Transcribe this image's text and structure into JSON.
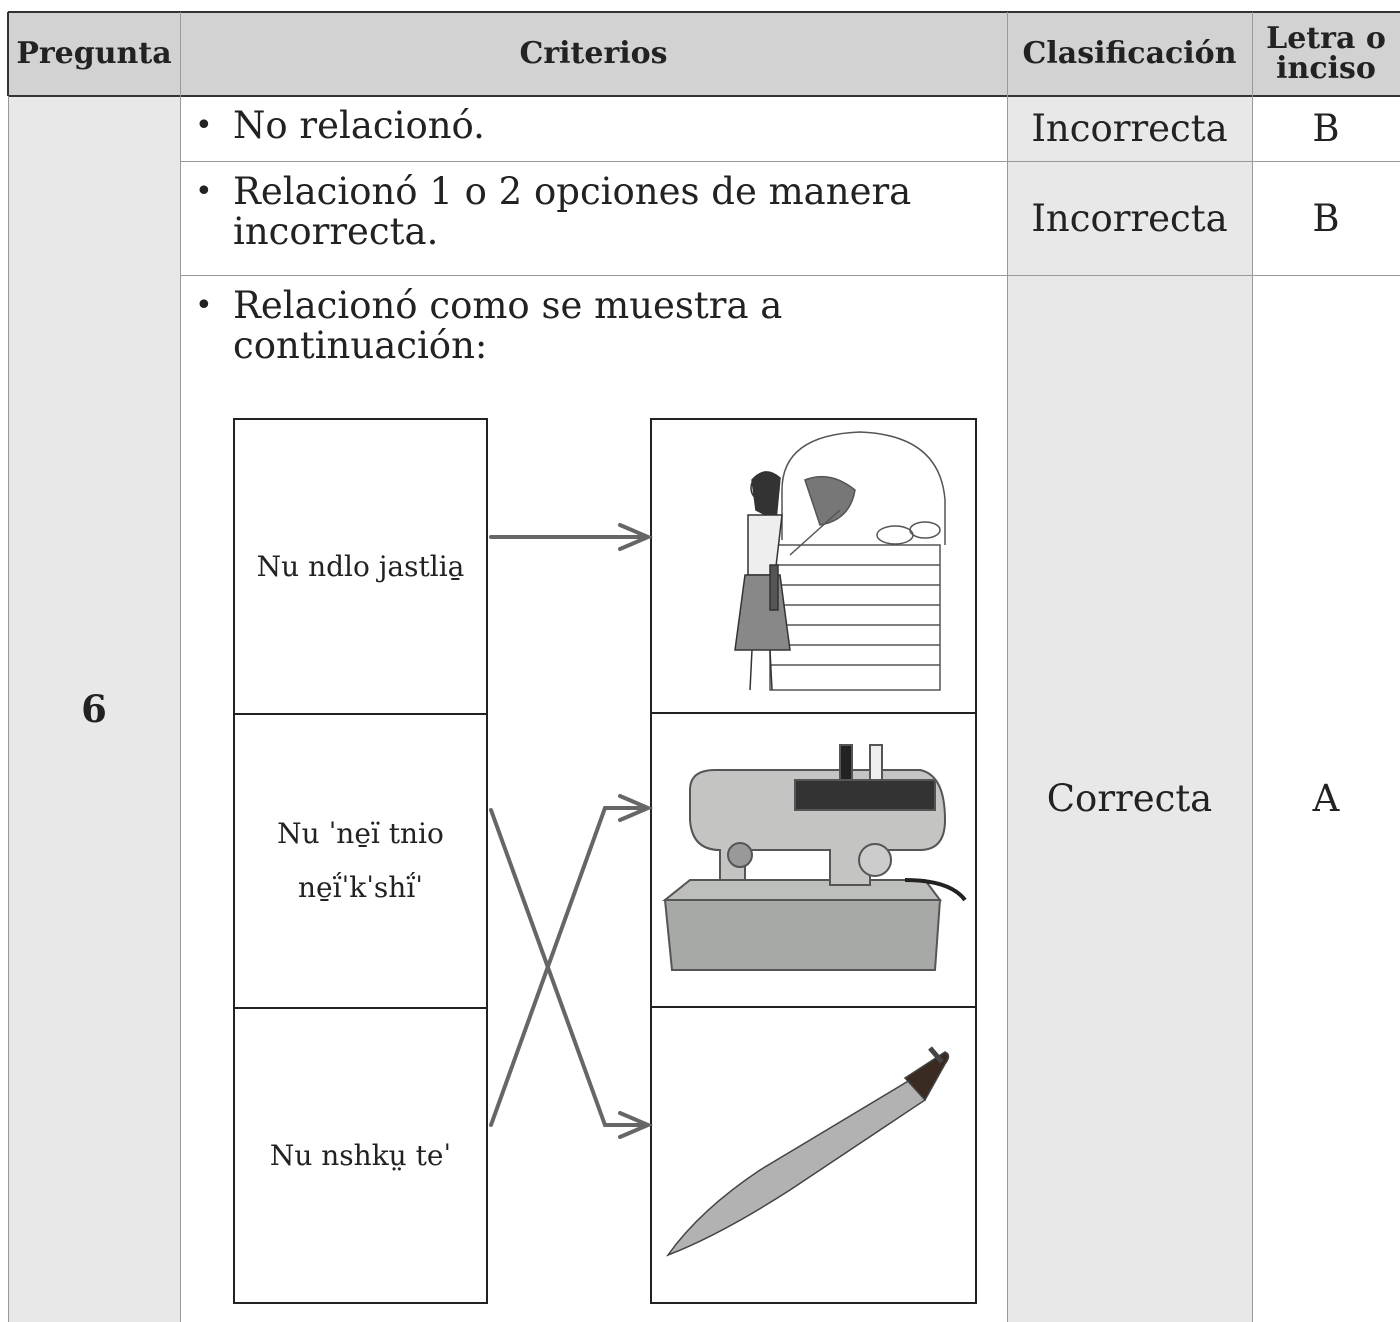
{
  "table": {
    "headers": [
      "Pregunta",
      "Criterios",
      "Clasificación",
      "Letra o inciso"
    ],
    "question": "6",
    "rows": [
      {
        "criterion": "No relacionó.",
        "classification": "Incorrecta",
        "letter": "B"
      },
      {
        "criterion": "Relacionó 1 o 2 opciones de manera incorrecta.",
        "classification": "Incorrecta",
        "letter": "B"
      },
      {
        "criterion": "Relacionó como se muestra a continuación:",
        "classification": "Correcta",
        "letter": "A"
      }
    ]
  },
  "matching": {
    "left": [
      "Nu ndlo jastlia̱",
      "Nu ˈne̱ï tnio ne̱ḯˈkˈshḯˈ",
      "Nu nshkṳ teˈ"
    ]
  }
}
